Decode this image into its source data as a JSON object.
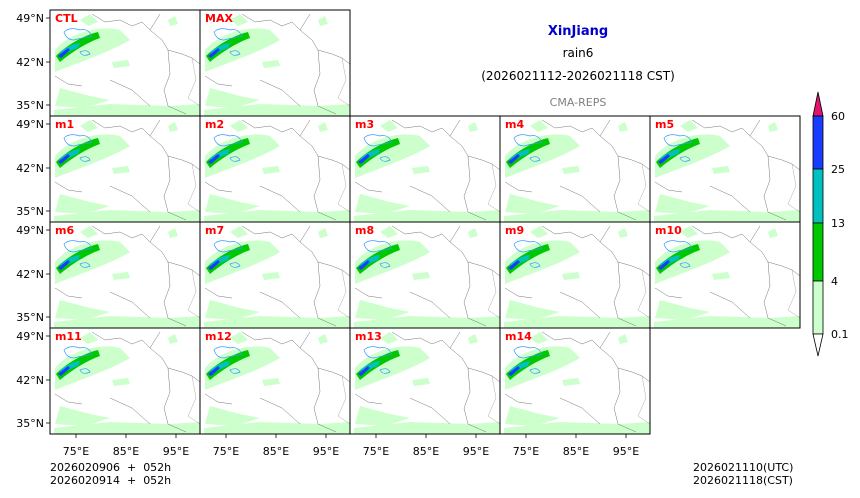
{
  "header": {
    "region": "XinJiang",
    "variable": "rain6",
    "period": "(2026021112-2026021118 CST)",
    "model": "CMA-REPS"
  },
  "panels": [
    "CTL",
    "MAX",
    "m1",
    "m2",
    "m3",
    "m4",
    "m5",
    "m6",
    "m7",
    "m8",
    "m9",
    "m10",
    "m11",
    "m12",
    "m13",
    "m14"
  ],
  "axes": {
    "lat_labels": [
      "49°N",
      "42°N",
      "35°N"
    ],
    "lon_labels": [
      "75°E",
      "85°E",
      "95°E"
    ]
  },
  "colorbar": {
    "levels": [
      "0.1",
      "4",
      "13",
      "25",
      "60"
    ],
    "colors": [
      "#ccffcc",
      "#00c800",
      "#00c0c0",
      "#1a3cff",
      "#e0146e"
    ]
  },
  "footer": {
    "init_utc": "2026020906  +  052h",
    "init_cst": "2026020914  +  052h",
    "valid_utc": "2026021110(UTC)",
    "valid_cst": "2026021118(CST)"
  },
  "colors": {
    "title_blue": "#0000cc",
    "panel_label": "#ff0000",
    "model_gray": "#808080"
  }
}
